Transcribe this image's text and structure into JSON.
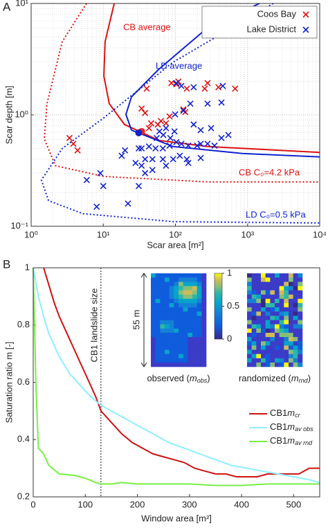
{
  "chart_data": [
    {
      "type": "scatter",
      "panel": "A",
      "xlabel": "Scar area [m²]",
      "ylabel": "Scar depth [m]",
      "xscale": "log",
      "yscale": "log",
      "grid": true,
      "minor_grid": true,
      "legend": "upper right",
      "xlim": [
        1,
        10000
      ],
      "ylim": [
        0.1,
        10
      ],
      "xticks": [
        {
          "value": 1,
          "label": "10⁰"
        },
        {
          "value": 10,
          "label": "10¹"
        },
        {
          "value": 100,
          "label": "10²"
        },
        {
          "value": 1000,
          "label": "10³"
        },
        {
          "value": 10000,
          "label": "10⁴"
        }
      ],
      "yticks": [
        {
          "value": 0.1,
          "label": "10⁻¹"
        },
        {
          "value": 1,
          "label": "10⁰"
        },
        {
          "value": 10,
          "label": "10¹"
        }
      ],
      "series": [
        {
          "name": "Coos Bay",
          "color": "#dd1111",
          "x": [
            3.4,
            3.85,
            4.4,
            34,
            38,
            46,
            57,
            74,
            83,
            129,
            137,
            144,
            88,
            103,
            110,
            255,
            279,
            395,
            672,
            40,
            63,
            43
          ],
          "y": [
            0.62,
            0.55,
            0.48,
            1.14,
            1.04,
            0.84,
            0.82,
            0.84,
            0.97,
            1.12,
            1.06,
            1.72,
            1.93,
            1.88,
            1.99,
            1.72,
            1.93,
            1.77,
            1.72,
            1.72,
            0.88,
            0.76
          ]
        },
        {
          "name": "Lake District",
          "color": "#1122cc",
          "x": [
            103,
            121,
            179,
            454,
            435,
            279,
            161,
            129,
            99,
            74,
            60,
            55,
            68,
            85,
            97,
            121,
            151,
            200,
            224,
            279,
            348,
            435,
            542,
            312,
            224,
            179,
            103,
            83,
            67,
            53,
            43,
            38,
            48,
            67,
            93,
            115,
            144,
            224,
            74,
            48,
            34,
            28,
            31,
            34,
            20,
            18,
            9.1,
            5.9,
            10,
            31,
            22,
            8.1,
            151,
            38
          ],
          "y": [
            1.93,
            1.82,
            1.77,
            1.82,
            1.29,
            1.26,
            1.26,
            1.09,
            1.01,
            0.76,
            0.71,
            0.62,
            0.66,
            0.62,
            0.71,
            0.55,
            0.53,
            0.53,
            0.55,
            0.55,
            0.53,
            0.62,
            0.66,
            0.76,
            0.73,
            0.82,
            0.57,
            0.53,
            0.5,
            0.5,
            0.52,
            0.4,
            0.4,
            0.4,
            0.4,
            0.43,
            0.4,
            0.41,
            0.35,
            0.32,
            0.35,
            0.37,
            0.5,
            0.5,
            0.48,
            0.43,
            0.3,
            0.26,
            0.23,
            0.23,
            0.16,
            0.15,
            0.37,
            0.3
          ]
        }
      ],
      "curves": [
        {
          "label": "CB average",
          "color": "#dd1111",
          "style": "solid",
          "x": [
            14.2,
            10.6,
            10.2,
            12.1,
            19.7,
            59,
            279,
            10000
          ],
          "y": [
            10,
            4.55,
            2.23,
            1.26,
            0.82,
            0.59,
            0.52,
            0.46
          ]
        },
        {
          "label": "LD average",
          "color": "#1122cc",
          "style": "solid",
          "x": [
            1460,
            280,
            59,
            24.6,
            20.6,
            24.6,
            92,
            840,
            10000
          ],
          "y": [
            10,
            6.06,
            2.57,
            1.45,
            1.01,
            0.73,
            0.52,
            0.45,
            0.42
          ]
        },
        {
          "label": "CB C₀=4.2 kPa",
          "color": "#dd1111",
          "style": "dotted",
          "x": [
            5.85,
            2.7,
            1.66,
            1.52,
            2.17,
            10.2,
            279,
            10000
          ],
          "y": [
            10,
            4.55,
            1.26,
            0.61,
            0.35,
            0.28,
            0.25,
            0.25
          ]
        },
        {
          "label": "LD C₀=0.5 kPa",
          "color": "#1122cc",
          "style": "dotted",
          "x": [
            2270,
            92,
            10.2,
            2.7,
            1.39,
            1.74,
            5.2,
            92,
            10000
          ],
          "y": [
            10,
            2.96,
            0.94,
            0.5,
            0.26,
            0.17,
            0.13,
            0.11,
            0.107
          ]
        }
      ],
      "points": [
        {
          "x": 34,
          "y": 0.71,
          "color": "#ee2222"
        },
        {
          "x": 31,
          "y": 0.69,
          "color": "#1122cc"
        }
      ]
    },
    {
      "type": "line",
      "panel": "B",
      "xlabel": "Window area [m²]",
      "ylabel": "Saturation ratio m [-]",
      "xlim": [
        0,
        550
      ],
      "ylim": [
        0.2,
        1
      ],
      "xticks": [
        0,
        100,
        200,
        300,
        400,
        500
      ],
      "yticks": [
        0.2,
        0.4,
        0.6,
        0.8,
        1
      ],
      "grid": false,
      "legend": "lower right",
      "vline": {
        "x": 130,
        "label": "CB1 landslide size"
      },
      "series": [
        {
          "name": "CB1",
          "symbol": "m",
          "subscript": "cr",
          "color": "#cc1111",
          "x": [
            20,
            30,
            40,
            50,
            60,
            70,
            80,
            90,
            100,
            110,
            120,
            130,
            150,
            170,
            190,
            210,
            230,
            250,
            270,
            290,
            310,
            330,
            350,
            370,
            390,
            410,
            430,
            450,
            470,
            490,
            510,
            530,
            550
          ],
          "values": [
            1.0,
            0.94,
            0.88,
            0.83,
            0.79,
            0.75,
            0.71,
            0.67,
            0.63,
            0.59,
            0.55,
            0.5,
            0.46,
            0.42,
            0.39,
            0.37,
            0.35,
            0.34,
            0.33,
            0.32,
            0.3,
            0.29,
            0.28,
            0.28,
            0.27,
            0.27,
            0.27,
            0.28,
            0.28,
            0.28,
            0.28,
            0.3,
            0.3
          ]
        },
        {
          "name": "CB1",
          "symbol": "m",
          "subscript": "av obs",
          "color": "#8eeeff",
          "x": [
            0,
            10,
            20,
            30,
            50,
            70,
            90,
            110,
            130,
            150,
            170,
            200,
            230,
            260,
            290,
            320,
            350,
            380,
            410,
            440,
            470,
            500,
            530,
            550
          ],
          "values": [
            1.0,
            0.9,
            0.83,
            0.77,
            0.69,
            0.63,
            0.59,
            0.55,
            0.52,
            0.5,
            0.48,
            0.45,
            0.42,
            0.39,
            0.37,
            0.35,
            0.33,
            0.31,
            0.3,
            0.29,
            0.28,
            0.27,
            0.26,
            0.25
          ]
        },
        {
          "name": "CB1",
          "symbol": "m",
          "subscript": "av rnd",
          "color": "#77ee44",
          "x": [
            0,
            5,
            10,
            20,
            30,
            50,
            80,
            100,
            120,
            130,
            150,
            170,
            200,
            250,
            300,
            350,
            400,
            450,
            500,
            550
          ],
          "values": [
            1.0,
            0.6,
            0.37,
            0.35,
            0.31,
            0.28,
            0.275,
            0.265,
            0.25,
            0.245,
            0.245,
            0.25,
            0.245,
            0.245,
            0.245,
            0.24,
            0.24,
            0.245,
            0.245,
            0.245
          ]
        }
      ],
      "insets": {
        "scale_label": "55 m",
        "clim": [
          0,
          1
        ],
        "colorbar_ticks": [
          0,
          0.5,
          1
        ],
        "observed": {
          "prefix": "observed (",
          "symbol": "m",
          "subscript": "obs",
          "suffix": ")"
        },
        "randomized": {
          "prefix": "randomized (",
          "symbol": "m",
          "subscript": "rnd",
          "suffix": ")"
        }
      }
    }
  ]
}
